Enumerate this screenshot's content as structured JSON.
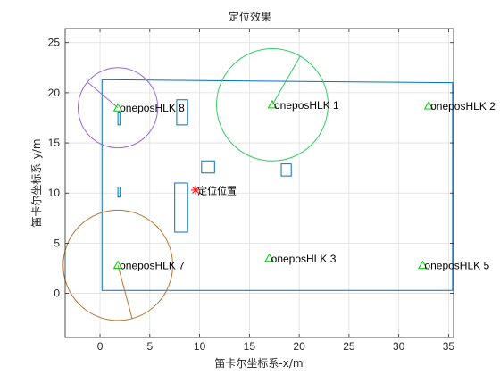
{
  "chart_data": {
    "type": "scatter",
    "title": "定位效果",
    "xlabel": "笛卡尔坐标系-x/m",
    "ylabel": "笛卡尔坐标系-y/m",
    "xlim": [
      -3.5,
      35.5
    ],
    "ylim": [
      -4.4,
      26.4
    ],
    "xticks": [
      0,
      5,
      10,
      15,
      20,
      25,
      30,
      35
    ],
    "yticks": [
      0,
      5,
      10,
      15,
      20,
      25
    ],
    "xtick_labels": [
      "0",
      "5",
      "10",
      "15",
      "20",
      "25",
      "30",
      "35"
    ],
    "ytick_labels": [
      "0",
      "5",
      "10",
      "15",
      "20",
      "25"
    ],
    "grid": true,
    "colors": {
      "room": "#0072bd",
      "anchor": "#00cc00",
      "position": "#ff0000",
      "circle_hlk1": "#33cc66",
      "circle_hlk7": "#b87333",
      "circle_hlk8": "#9966dd"
    },
    "room_outline": {
      "x": [
        0.2,
        35.4,
        35.4,
        0.2,
        0.2
      ],
      "y": [
        21.3,
        21.0,
        0.3,
        0.3,
        21.3
      ]
    },
    "obstacles": [
      {
        "x": [
          7.7,
          8.8,
          8.8,
          7.7
        ],
        "y": [
          19.3,
          19.3,
          16.8,
          16.8
        ]
      },
      {
        "x": [
          10.2,
          11.5,
          11.5,
          10.2
        ],
        "y": [
          13.2,
          13.2,
          12.0,
          12.0
        ]
      },
      {
        "x": [
          18.2,
          19.2,
          19.2,
          18.2
        ],
        "y": [
          12.9,
          12.9,
          11.7,
          11.7
        ]
      },
      {
        "x": [
          7.5,
          8.8,
          8.8,
          7.5
        ],
        "y": [
          11.0,
          11.0,
          6.1,
          6.1
        ]
      },
      {
        "x": [
          1.8,
          2.0,
          2.0,
          1.8
        ],
        "y": [
          10.6,
          10.6,
          9.6,
          9.6
        ]
      },
      {
        "x": [
          1.8,
          2.0,
          2.0,
          1.8
        ],
        "y": [
          18.0,
          18.0,
          16.8,
          16.8
        ]
      }
    ],
    "anchors": [
      {
        "name": "oneposHLK 1",
        "x": 17.3,
        "y": 18.8
      },
      {
        "name": "oneposHLK 2",
        "x": 33.0,
        "y": 18.7
      },
      {
        "name": "oneposHLK 3",
        "x": 17.0,
        "y": 3.5
      },
      {
        "name": "oneposHLK 5",
        "x": 32.4,
        "y": 2.8
      },
      {
        "name": "oneposHLK 7",
        "x": 1.8,
        "y": 2.8
      },
      {
        "name": "oneposHLK 8",
        "x": 1.8,
        "y": 18.5
      }
    ],
    "range_circles": [
      {
        "anchor": "oneposHLK 1",
        "cx": 17.3,
        "cy": 18.8,
        "r": 5.6,
        "color": "#33cc66",
        "angle_deg": 60
      },
      {
        "anchor": "oneposHLK 7",
        "cx": 1.8,
        "cy": 2.8,
        "r": 5.5,
        "color": "#b87333",
        "angle_deg": -75
      },
      {
        "anchor": "oneposHLK 8",
        "cx": 1.8,
        "cy": 18.5,
        "r": 4.0,
        "color": "#9966dd",
        "angle_deg": 140
      }
    ],
    "position": {
      "label": "定位位置",
      "x": 9.6,
      "y": 10.3
    }
  }
}
